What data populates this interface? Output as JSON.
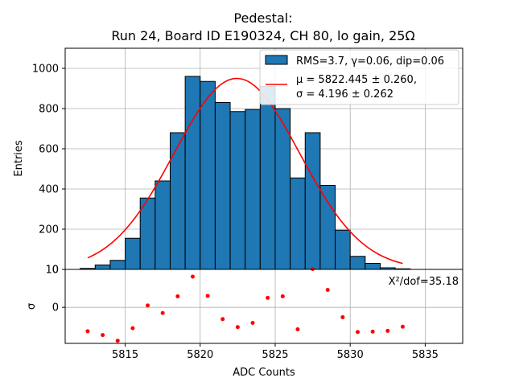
{
  "chart_data": [
    {
      "type": "bar",
      "title_line1": "Pedestal:",
      "title_line2": "Run 24, Board ID E190324, CH 80, lo gain, 25Ω",
      "xlabel": "ADC Counts",
      "ylabel": "Entries",
      "xlim": [
        5811,
        5837.5
      ],
      "ylim": [
        0,
        1100
      ],
      "yticks": [
        0,
        200,
        400,
        600,
        800,
        1000
      ],
      "xticks": [
        5815,
        5820,
        5825,
        5830,
        5835
      ],
      "grid": true,
      "bin_edges": [
        5812,
        5813,
        5814,
        5815,
        5816,
        5817,
        5818,
        5819,
        5820,
        5821,
        5822,
        5823,
        5824,
        5825,
        5826,
        5827,
        5828,
        5829,
        5830,
        5831,
        5832,
        5833,
        5834
      ],
      "values": [
        5,
        22,
        45,
        155,
        355,
        440,
        680,
        960,
        935,
        830,
        785,
        795,
        910,
        800,
        455,
        680,
        418,
        195,
        65,
        30,
        8,
        3
      ],
      "fit": {
        "type": "gaussian",
        "mu": 5822.445,
        "sigma": 4.196,
        "amplitude": 950,
        "x_range": [
          5812.5,
          5833.5
        ]
      },
      "legend": {
        "position": "top-right",
        "hist_label": "RMS=3.7, γ=0.06, dip=0.06",
        "fit_line1": "μ = 5822.445 ± 0.260,",
        "fit_line2": "σ = 4.196 ± 0.262"
      },
      "colors": {
        "bar": "#1f77b4",
        "fit": "#ff0000",
        "grid": "#b0b0b0"
      }
    },
    {
      "type": "scatter",
      "ylabel": "σ",
      "xlim": [
        5811,
        5837.5
      ],
      "ylim": [
        -9.5,
        10
      ],
      "yticks": [
        0,
        10
      ],
      "grid": true,
      "annotation": "X²/dof=35.18",
      "x": [
        5812.5,
        5813.5,
        5814.5,
        5815.5,
        5816.5,
        5817.5,
        5818.5,
        5819.5,
        5820.5,
        5821.5,
        5822.5,
        5823.5,
        5824.5,
        5825.5,
        5826.5,
        5827.5,
        5828.5,
        5829.5,
        5830.5,
        5831.5,
        5832.5,
        5833.5
      ],
      "y": [
        -6.3,
        -7.3,
        -8.8,
        -5.5,
        0.5,
        -1.5,
        2.9,
        8.1,
        3.0,
        -3.1,
        -5.2,
        -4.1,
        2.5,
        2.9,
        -5.8,
        10.1,
        4.6,
        -2.6,
        -6.5,
        -6.4,
        -6.2,
        -5.1
      ],
      "colors": {
        "point": "#ff0000"
      }
    }
  ]
}
